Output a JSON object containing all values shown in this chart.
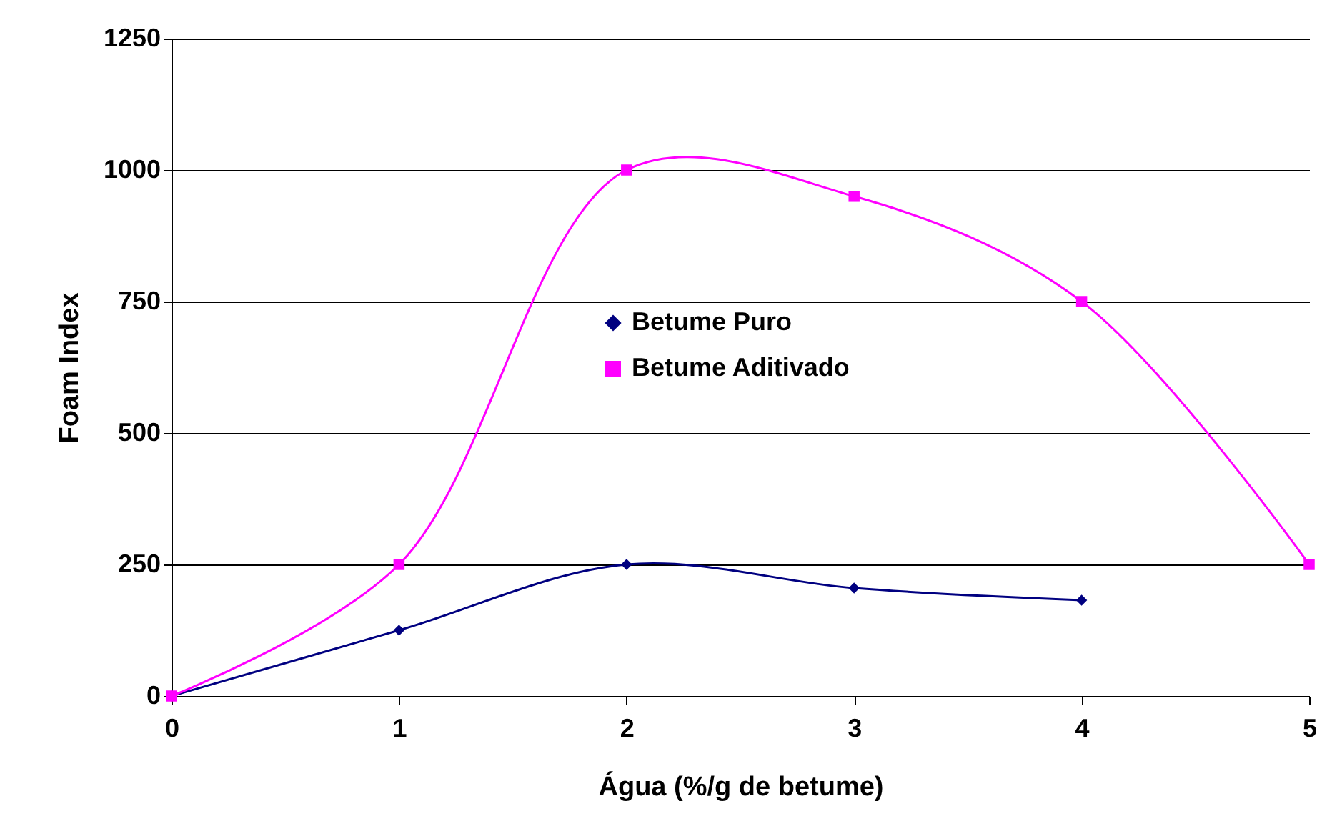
{
  "chart_data": {
    "type": "line",
    "xlabel": "Água (%/g de betume)",
    "ylabel": "Foam Index",
    "xlim": [
      0,
      5
    ],
    "xticks": [
      0,
      1,
      2,
      3,
      4,
      5
    ],
    "ylim": [
      0,
      1250
    ],
    "yticks": [
      0,
      250,
      500,
      750,
      1000,
      1250
    ],
    "grid": "y",
    "legend": "center",
    "line_style": "solid",
    "series": [
      {
        "name": "Betume Puro",
        "color": "#000080",
        "marker": "diamond",
        "x": [
          0,
          1,
          2,
          3,
          4
        ],
        "values": [
          0,
          125,
          250,
          205,
          182
        ]
      },
      {
        "name": "Betume Aditivado",
        "color": "#ff00ff",
        "marker": "square",
        "x": [
          0,
          1,
          2,
          3,
          4,
          5
        ],
        "values": [
          0,
          250,
          1000,
          950,
          750,
          250
        ]
      }
    ]
  }
}
